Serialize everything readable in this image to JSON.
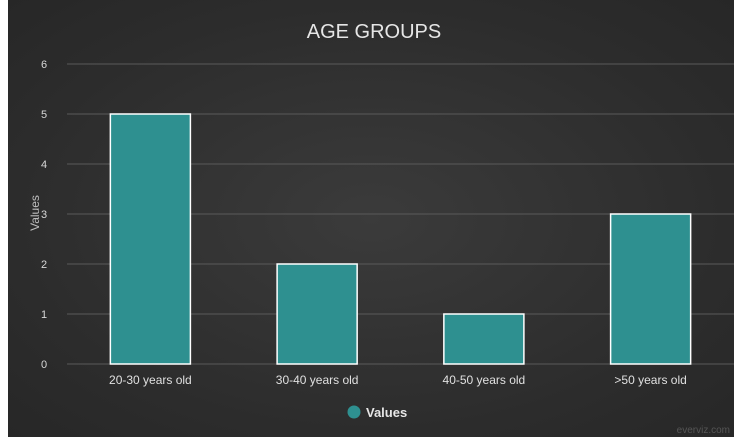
{
  "chart_data": {
    "type": "bar",
    "title": "AGE GROUPS",
    "xlabel": "",
    "ylabel": "Values",
    "categories": [
      "20-30 years old",
      "30-40 years old",
      "40-50 years old",
      ">50 years old"
    ],
    "series": [
      {
        "name": "Values",
        "values": [
          5,
          2,
          1,
          3
        ]
      }
    ],
    "ylim": [
      0,
      6
    ],
    "yticks": [
      0,
      1,
      2,
      3,
      4,
      5,
      6
    ],
    "grid": true,
    "legend_position": "bottom-center",
    "colors": {
      "bar": "#2e9090",
      "bar_stroke": "#ffffff",
      "background": "#2f2f2f",
      "grid": "#5a5a5a"
    }
  },
  "credit": "everviz.com"
}
